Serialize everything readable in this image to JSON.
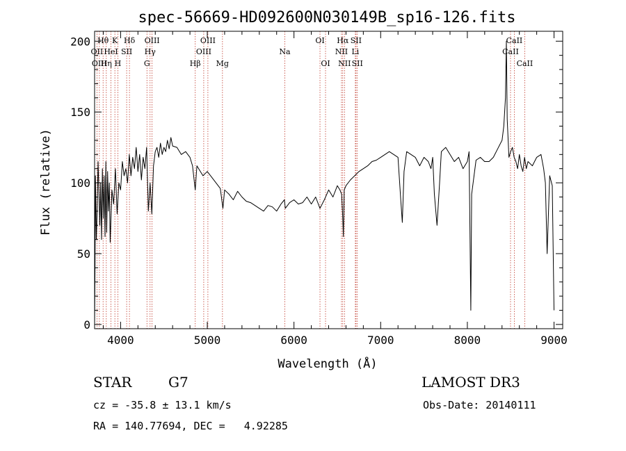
{
  "colors": {
    "spectrum": "#000000",
    "line_marker": "#c0392b",
    "axis": "#000000"
  },
  "info": {
    "object_class": "STAR",
    "subclass": "G7",
    "survey": "LAMOST DR3",
    "redshift": "cz = -35.8 ± 13.1 km/s",
    "obs_date": "Obs-Date: 20140111",
    "coords": "RA = 140.77694, DEC =   4.92285"
  },
  "chart_data": {
    "type": "line",
    "title": "spec-56669-HD092600N030149B_sp16-126.fits",
    "xlabel": "Wavelength (Å)",
    "ylabel": "Flux (relative)",
    "xlim": [
      3700,
      9100
    ],
    "ylim": [
      -3,
      207
    ],
    "x_ticks": [
      4000,
      5000,
      6000,
      7000,
      8000,
      9000
    ],
    "y_ticks": [
      0,
      50,
      100,
      150,
      200
    ],
    "x_tick_labels": [
      "4000",
      "5000",
      "6000",
      "7000",
      "8000",
      "9000"
    ],
    "y_tick_labels": [
      "0",
      "50",
      "100",
      "150",
      "200"
    ],
    "spectrum": {
      "x": [
        3700,
        3705,
        3710,
        3720,
        3730,
        3740,
        3750,
        3760,
        3770,
        3780,
        3790,
        3800,
        3810,
        3820,
        3830,
        3840,
        3850,
        3860,
        3870,
        3880,
        3900,
        3920,
        3940,
        3960,
        3980,
        4000,
        4020,
        4040,
        4060,
        4080,
        4100,
        4120,
        4140,
        4160,
        4180,
        4200,
        4220,
        4240,
        4260,
        4280,
        4300,
        4320,
        4340,
        4360,
        4380,
        4400,
        4420,
        4440,
        4460,
        4480,
        4500,
        4520,
        4540,
        4560,
        4580,
        4600,
        4650,
        4700,
        4750,
        4800,
        4830,
        4861,
        4880,
        4900,
        4950,
        5000,
        5050,
        5100,
        5150,
        5180,
        5200,
        5250,
        5300,
        5350,
        5400,
        5450,
        5500,
        5550,
        5600,
        5650,
        5700,
        5750,
        5800,
        5850,
        5890,
        5900,
        5950,
        6000,
        6050,
        6100,
        6150,
        6200,
        6250,
        6300,
        6350,
        6400,
        6450,
        6500,
        6530,
        6550,
        6563,
        6570,
        6580,
        6600,
        6650,
        6700,
        6750,
        6800,
        6850,
        6900,
        6950,
        7000,
        7050,
        7100,
        7150,
        7200,
        7230,
        7250,
        7270,
        7300,
        7350,
        7400,
        7450,
        7500,
        7550,
        7580,
        7600,
        7620,
        7650,
        7680,
        7700,
        7750,
        7800,
        7850,
        7900,
        7950,
        8000,
        8020,
        8040,
        8050,
        8100,
        8150,
        8200,
        8250,
        8300,
        8350,
        8400,
        8420,
        8440,
        8450,
        8460,
        8480,
        8500,
        8520,
        8540,
        8560,
        8580,
        8600,
        8620,
        8640,
        8660,
        8680,
        8700,
        8750,
        8800,
        8850,
        8880,
        8900,
        8920,
        8950,
        8980,
        9000
      ],
      "y": [
        0,
        40,
        105,
        60,
        80,
        115,
        95,
        70,
        100,
        60,
        110,
        75,
        105,
        62,
        115,
        65,
        108,
        80,
        100,
        58,
        95,
        85,
        110,
        78,
        100,
        95,
        115,
        105,
        110,
        100,
        120,
        105,
        118,
        110,
        125,
        108,
        120,
        102,
        118,
        110,
        125,
        80,
        100,
        78,
        112,
        122,
        125,
        118,
        128,
        120,
        125,
        122,
        130,
        124,
        132,
        126,
        125,
        120,
        122,
        118,
        112,
        95,
        112,
        110,
        105,
        108,
        104,
        100,
        96,
        82,
        95,
        92,
        88,
        94,
        90,
        87,
        86,
        84,
        82,
        80,
        84,
        83,
        80,
        85,
        88,
        82,
        86,
        88,
        85,
        86,
        90,
        85,
        90,
        82,
        88,
        95,
        90,
        98,
        95,
        92,
        75,
        62,
        95,
        98,
        102,
        105,
        108,
        110,
        112,
        115,
        116,
        118,
        120,
        122,
        120,
        118,
        90,
        72,
        108,
        122,
        120,
        118,
        112,
        118,
        115,
        110,
        118,
        92,
        70,
        100,
        122,
        125,
        120,
        115,
        118,
        110,
        115,
        122,
        10,
        92,
        116,
        118,
        115,
        115,
        118,
        124,
        130,
        140,
        160,
        200,
        145,
        118,
        122,
        125,
        118,
        115,
        110,
        120,
        112,
        108,
        118,
        110,
        115,
        112,
        118,
        120,
        110,
        100,
        50,
        105,
        98,
        10
      ]
    },
    "spectral_lines": [
      {
        "name": "Hθ",
        "wavelength": 3798,
        "row": 1
      },
      {
        "name": "OII",
        "wavelength": 3727,
        "row": 2
      },
      {
        "name": "OIII",
        "wavelength": 3755,
        "row": 3
      },
      {
        "name": "K",
        "wavelength": 3934,
        "row": 1
      },
      {
        "name": "HeI",
        "wavelength": 3889,
        "row": 2
      },
      {
        "name": "Hη",
        "wavelength": 3835,
        "row": 3
      },
      {
        "name": "Hδ",
        "wavelength": 4102,
        "row": 1
      },
      {
        "name": "SII",
        "wavelength": 4070,
        "row": 2
      },
      {
        "name": "H",
        "wavelength": 3968,
        "row": 3
      },
      {
        "name": "OIII",
        "wavelength": 4363,
        "row": 1
      },
      {
        "name": "Hγ",
        "wavelength": 4340,
        "row": 2
      },
      {
        "name": "G",
        "wavelength": 4304,
        "row": 3
      },
      {
        "name": "Hβ",
        "wavelength": 4861,
        "row": 3
      },
      {
        "name": "OIII",
        "wavelength": 5007,
        "row": 1
      },
      {
        "name": "OIII",
        "wavelength": 4959,
        "row": 2
      },
      {
        "name": "Mg",
        "wavelength": 5175,
        "row": 3
      },
      {
        "name": "Na",
        "wavelength": 5894,
        "row": 2
      },
      {
        "name": "OI",
        "wavelength": 6300,
        "row": 1
      },
      {
        "name": "OI",
        "wavelength": 6364,
        "row": 3
      },
      {
        "name": "Hα",
        "wavelength": 6563,
        "row": 1
      },
      {
        "name": "SII",
        "wavelength": 6716,
        "row": 1
      },
      {
        "name": "NII",
        "wavelength": 6548,
        "row": 2
      },
      {
        "name": "Li",
        "wavelength": 6708,
        "row": 2
      },
      {
        "name": "NII",
        "wavelength": 6583,
        "row": 3
      },
      {
        "name": "SII",
        "wavelength": 6731,
        "row": 3
      },
      {
        "name": "CaII",
        "wavelength": 8542,
        "row": 1
      },
      {
        "name": "CaII",
        "wavelength": 8498,
        "row": 2
      },
      {
        "name": "CaII",
        "wavelength": 8662,
        "row": 3
      }
    ]
  }
}
